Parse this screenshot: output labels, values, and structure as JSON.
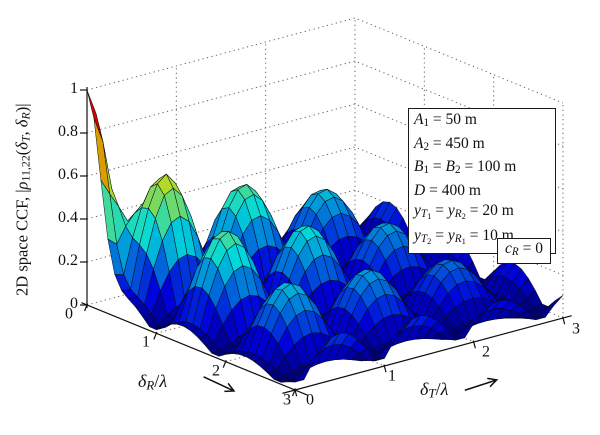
{
  "figure": {
    "background": "#ffffff",
    "text_color": "#111111",
    "z_axis": {
      "label_plain": "2D space CCF, |ρ11,22(δT, δR)|",
      "label_math": [
        [
          "2D space CCF, ",
          ""
        ],
        [
          "|",
          ""
        ],
        [
          "ρ",
          "i"
        ],
        [
          "11,22",
          "s1"
        ],
        [
          "(",
          ""
        ],
        [
          "δ",
          "i"
        ],
        [
          "T",
          "is1"
        ],
        [
          ", ",
          ""
        ],
        [
          "δ",
          "i"
        ],
        [
          "R",
          "is1"
        ],
        [
          ")",
          ""
        ],
        [
          "|",
          ""
        ]
      ],
      "tick_labels": [
        "1",
        "0.8",
        "0.6",
        "0.4",
        "0.2",
        "0"
      ]
    },
    "r_axis": {
      "label_plain": "δR/λ",
      "label_math": [
        [
          "δ",
          "i"
        ],
        [
          "R",
          "is1"
        ],
        [
          "/",
          ""
        ],
        [
          "λ",
          "i"
        ]
      ],
      "tick_labels": [
        "0",
        "1",
        "2",
        "3"
      ],
      "arrow_icon": "axis-direction-arrow"
    },
    "t_axis": {
      "label_plain": "δT/λ",
      "label_math": [
        [
          "δ",
          "i"
        ],
        [
          "T",
          "is1"
        ],
        [
          "/",
          ""
        ],
        [
          "λ",
          "i"
        ]
      ],
      "tick_labels": [
        "0",
        "1",
        "2",
        "3"
      ],
      "arrow_icon": "axis-direction-arrow"
    },
    "annotation_box": {
      "lines_plain": [
        "A1 = 50 m",
        "A2 = 450 m",
        "B1 = B2 = 100 m",
        "D = 400 m",
        "yT1 = yR2 = 20 m",
        "yT2 = yR1 = 10 m"
      ],
      "lines_math": [
        [
          [
            "A",
            "i"
          ],
          [
            "1",
            "s1"
          ],
          [
            " = 50 m",
            ""
          ]
        ],
        [
          [
            "A",
            "i"
          ],
          [
            "2",
            "s1"
          ],
          [
            " = 450 m",
            ""
          ]
        ],
        [
          [
            "B",
            "i"
          ],
          [
            "1",
            "s1"
          ],
          [
            " = ",
            ""
          ],
          [
            "B",
            "i"
          ],
          [
            "2",
            "s1"
          ],
          [
            " = 100 m",
            ""
          ]
        ],
        [
          [
            "D",
            "i"
          ],
          [
            " = 400 m",
            ""
          ]
        ],
        [
          [
            "y",
            "i"
          ],
          [
            "T",
            "is1"
          ],
          [
            "1",
            "s2"
          ],
          [
            " = ",
            ""
          ],
          [
            "y",
            "i"
          ],
          [
            "R",
            "is1"
          ],
          [
            "2",
            "s2"
          ],
          [
            " = 20 m",
            ""
          ]
        ],
        [
          [
            "y",
            "i"
          ],
          [
            "T",
            "is1"
          ],
          [
            "2",
            "s2"
          ],
          [
            " = ",
            ""
          ],
          [
            "y",
            "i"
          ],
          [
            "R",
            "is1"
          ],
          [
            "1",
            "s2"
          ],
          [
            " = 10 m",
            ""
          ]
        ]
      ]
    },
    "cr_box": {
      "line_plain": "cR = 0",
      "line_math": [
        [
          "c",
          "i"
        ],
        [
          "R",
          "is1"
        ],
        [
          " = 0",
          ""
        ]
      ]
    }
  },
  "chart_data": {
    "type": "surface",
    "title": "",
    "xlabel": "δT/λ",
    "ylabel": "δR/λ",
    "zlabel": "2D space CCF, |ρ11,22(δT, δR)|",
    "x_range": [
      0,
      3
    ],
    "y_range": [
      0,
      3
    ],
    "z_range": [
      0,
      1
    ],
    "x_ticks": [
      0,
      1,
      2,
      3
    ],
    "y_ticks": [
      0,
      1,
      2,
      3
    ],
    "z_ticks": [
      0,
      0.2,
      0.4,
      0.6,
      0.8,
      1
    ],
    "colormap": "jet",
    "grid_style": "dotted",
    "annotations": [
      "A1 = 50 m",
      "A2 = 450 m",
      "B1 = B2 = 100 m",
      "D = 400 m",
      "yT1 = yR2 = 20 m",
      "yT2 = yR1 = 10 m",
      "cR = 0"
    ],
    "surface_model": {
      "description": "|rho(dT,dR)| = min(1, exp(-(p/0.26)^2) + E(p)*|sin(pi*(dT-0.05)/0.9)|*|sin(pi*(dR-0.05)/0.9)|), p = sqrt(dT^2+dR^2), E(p) = 0.62*exp(-0.35*max(0, p-0.7)); unit peak at origin with decaying grid of side lobes spaced ~0.9 wavelengths",
      "params": {
        "lobe_period": 0.9,
        "lobe_phase": 0.05,
        "env_peak": 0.62,
        "env_decay": 0.35,
        "env_flat_radius": 0.7,
        "spike_width": 0.26
      },
      "mesh_step": 0.1
    },
    "z_samples": {
      "t_values": [
        0,
        0.5,
        1,
        1.5,
        2,
        2.5,
        3
      ],
      "r_values": [
        0,
        0.5,
        1,
        1.5,
        2,
        2.5,
        3
      ],
      "matrix_rows_r_cols_t": [
        [
          1.0,
          0.13,
          0.02,
          0.08,
          0.03,
          0.04,
          0.04
        ],
        [
          0.13,
          0.62,
          0.09,
          0.43,
          0.19,
          0.25,
          0.21
        ],
        [
          0.02,
          0.09,
          0.01,
          0.07,
          0.03,
          0.04,
          0.03
        ],
        [
          0.08,
          0.43,
          0.07,
          0.33,
          0.16,
          0.21,
          0.18
        ],
        [
          0.03,
          0.19,
          0.03,
          0.16,
          0.07,
          0.1,
          0.09
        ],
        [
          0.04,
          0.25,
          0.04,
          0.21,
          0.1,
          0.13,
          0.12
        ],
        [
          0.04,
          0.21,
          0.03,
          0.18,
          0.09,
          0.12,
          0.11
        ]
      ]
    }
  }
}
